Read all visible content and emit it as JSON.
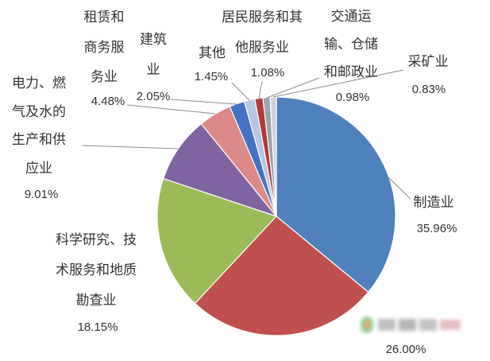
{
  "chart_data": {
    "type": "pie",
    "categories": [
      "制造业",
      "",
      "科学研究、技\n术服务和地质\n勘查业",
      "电力、燃\n气及水的\n生产和供\n应业",
      "租赁和\n商务服\n务业",
      "建筑\n业",
      "其他",
      "居民服务和其\n他服务业",
      "交通运\n输、仓储\n和邮政业",
      "采矿业"
    ],
    "values": [
      35.96,
      26.0,
      18.15,
      9.01,
      4.48,
      2.05,
      1.45,
      1.08,
      0.98,
      0.83
    ],
    "value_labels": [
      "35.96%",
      "26.00%",
      "18.15%",
      "9.01%",
      "4.48%",
      "2.05%",
      "1.45%",
      "1.08%",
      "0.98%",
      "0.83%"
    ],
    "colors": [
      "#4f81bd",
      "#c0504d",
      "#9bbb59",
      "#8064a2",
      "#dc8a87",
      "#4472c4",
      "#b8c6e3",
      "#b03a3a",
      "#9ea3ad",
      "#cfd3da"
    ],
    "legend": "none",
    "grid": false
  }
}
